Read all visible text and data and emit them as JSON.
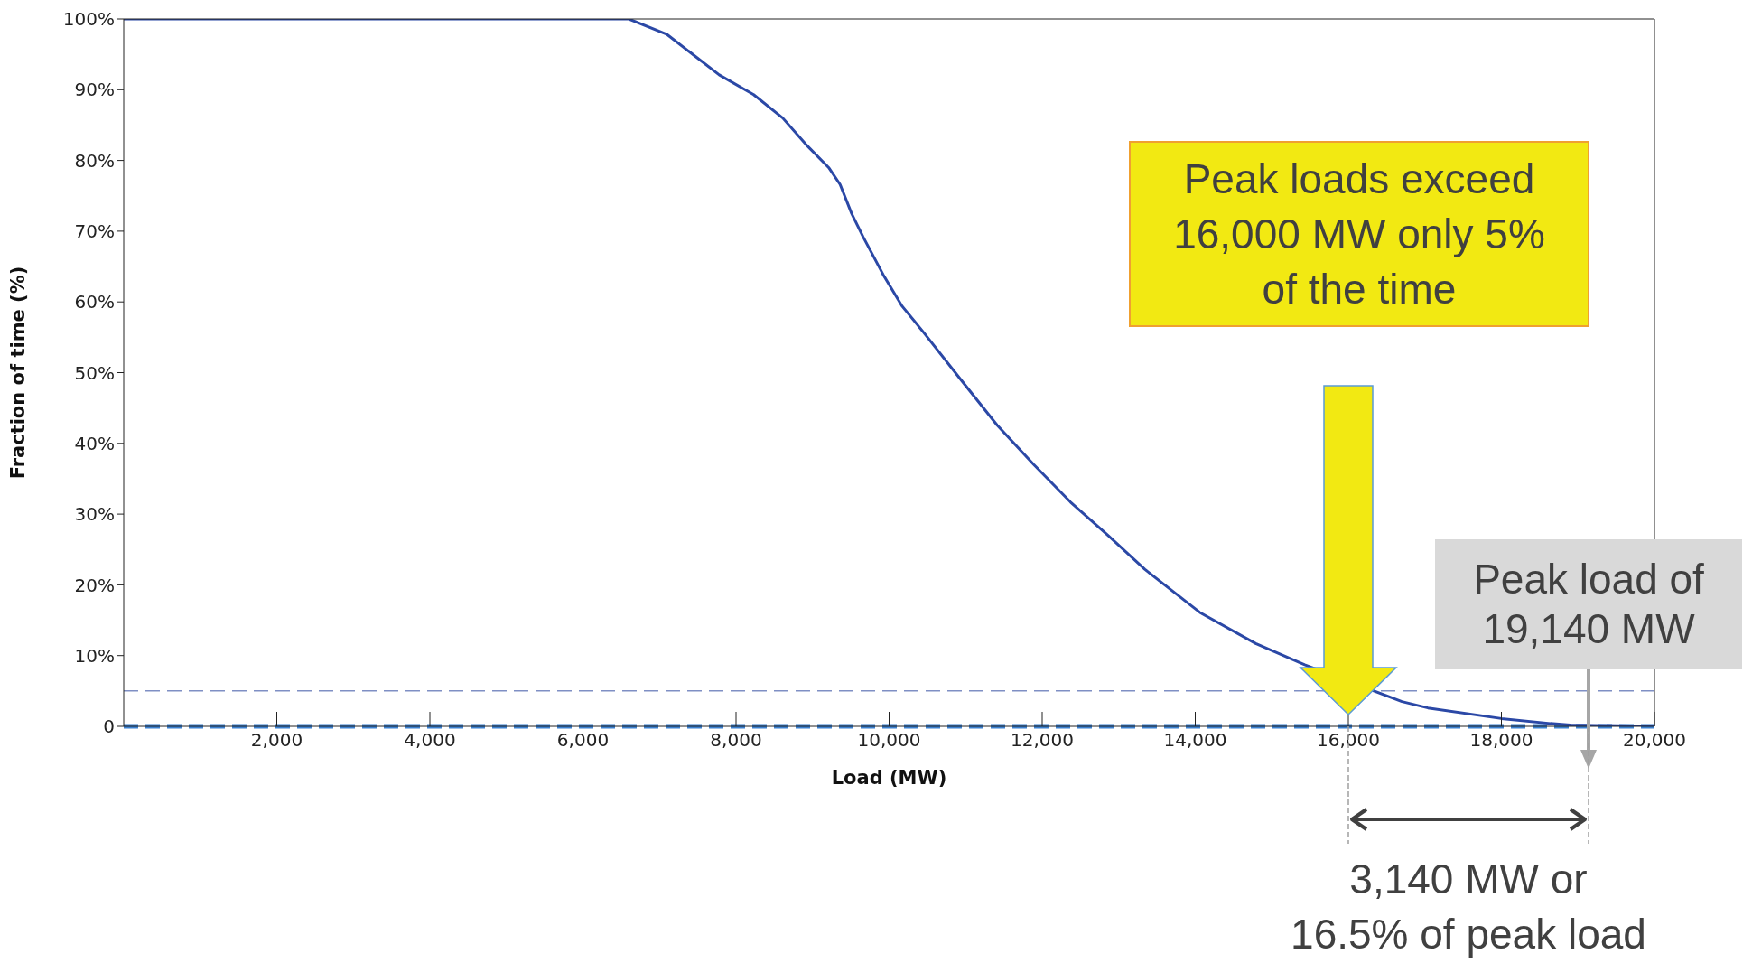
{
  "chart_data": {
    "type": "line",
    "xlabel": "Load (MW)",
    "ylabel": "Fraction of time (%)",
    "xlim": [
      0,
      20000
    ],
    "ylim": [
      0,
      100
    ],
    "xticks": [
      {
        "value": 2000,
        "label": "2,000"
      },
      {
        "value": 4000,
        "label": "4,000"
      },
      {
        "value": 6000,
        "label": "6,000"
      },
      {
        "value": 8000,
        "label": "8,000"
      },
      {
        "value": 10000,
        "label": "10,000"
      },
      {
        "value": 12000,
        "label": "12,000"
      },
      {
        "value": 14000,
        "label": "14,000"
      },
      {
        "value": 16000,
        "label": "16,000"
      },
      {
        "value": 18000,
        "label": "18,000"
      },
      {
        "value": 20000,
        "label": "20,000"
      }
    ],
    "yticks": [
      0,
      {
        "value": 10,
        "label": "10%"
      },
      {
        "value": 20,
        "label": "20%"
      },
      {
        "value": 30,
        "label": "30%"
      },
      {
        "value": 40,
        "label": "40%"
      },
      {
        "value": 50,
        "label": "50%"
      },
      {
        "value": 60,
        "label": "60%"
      },
      {
        "value": 70,
        "label": "70%"
      },
      {
        "value": 80,
        "label": "80%"
      },
      {
        "value": 90,
        "label": "90%"
      },
      {
        "value": 100,
        "label": "100%"
      }
    ],
    "grid": false,
    "legend": false,
    "marker": "none",
    "line_style": "solid",
    "series": [
      {
        "color": "#2b48a6",
        "x": [
          0,
          6600,
          7100,
          7780,
          8230,
          8610,
          8910,
          9210,
          9360,
          9510,
          9660,
          9920,
          10170,
          10450,
          10930,
          11410,
          11890,
          12370,
          12860,
          13340,
          14060,
          14790,
          15430,
          16700,
          17040,
          18000,
          18640,
          18900,
          20000
        ],
        "values": [
          100,
          100,
          97.8,
          92.1,
          89.3,
          86,
          82.3,
          79,
          76.6,
          72.5,
          69.2,
          63.9,
          59.4,
          55.7,
          49.1,
          42.6,
          37,
          31.7,
          27,
          22.2,
          16.1,
          11.7,
          8.7,
          3.5,
          2.6,
          1.1,
          0.4,
          0.2,
          0
        ]
      }
    ],
    "ref_lines": [
      {
        "axis": "y",
        "value": 5,
        "color": "#7f8fc4",
        "line_style": "dashed"
      },
      {
        "axis": "y",
        "value": 0,
        "color": "#3a80d0",
        "line_style": "dashed"
      }
    ],
    "annotations": [
      "Peak loads exceed 16,000 MW only 5% of the time",
      "Peak load of 19,140 MW",
      "3,140 MW or 16.5% of peak load"
    ]
  }
}
